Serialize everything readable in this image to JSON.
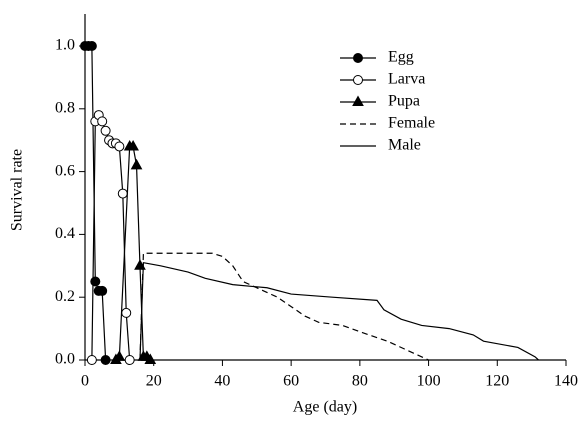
{
  "chart_data": {
    "type": "line",
    "xlabel": "Age (day)",
    "ylabel": "Survival rate",
    "xlim": [
      0,
      140
    ],
    "xticks": [
      0,
      20,
      40,
      60,
      80,
      100,
      120,
      140
    ],
    "ylim": [
      0,
      1.1
    ],
    "yticks": [
      {
        "value": 0,
        "label": "0.0"
      },
      0.2,
      0.4,
      0.6,
      0.8,
      {
        "value": 1,
        "label": "1.0"
      }
    ],
    "grid": false,
    "legend": "upper right",
    "series": [
      {
        "name": "Egg",
        "color": "#000000",
        "marker": "filled-circle",
        "dash": false,
        "x": [
          0,
          1,
          2,
          3,
          4,
          5,
          6
        ],
        "values": [
          1,
          1,
          1,
          0.25,
          0.22,
          0.22,
          0
        ]
      },
      {
        "name": "Larva",
        "color": "#000000",
        "marker": "open-circle",
        "dash": false,
        "x": [
          2,
          3,
          4,
          5,
          6,
          7,
          8,
          9,
          10,
          11,
          12,
          13
        ],
        "values": [
          0,
          0.76,
          0.78,
          0.76,
          0.73,
          0.7,
          0.69,
          0.69,
          0.68,
          0.53,
          0.15,
          0
        ]
      },
      {
        "name": "Pupa",
        "color": "#000000",
        "marker": "filled-triangle",
        "dash": false,
        "x": [
          9,
          10,
          13,
          14,
          15,
          16,
          17,
          18,
          19
        ],
        "values": [
          0,
          0.01,
          0.68,
          0.68,
          0.62,
          0.3,
          0.01,
          0.01,
          0
        ]
      },
      {
        "name": "Female",
        "color": "#000000",
        "marker": "none",
        "dash": true,
        "x": [
          16,
          17,
          37,
          40,
          43,
          46,
          52,
          56,
          60,
          64,
          68,
          75,
          80,
          88,
          94,
          100
        ],
        "values": [
          0,
          0.34,
          0.34,
          0.33,
          0.3,
          0.25,
          0.22,
          0.2,
          0.17,
          0.14,
          0.12,
          0.11,
          0.09,
          0.06,
          0.03,
          0
        ]
      },
      {
        "name": "Male",
        "color": "#000000",
        "marker": "none",
        "dash": false,
        "x": [
          16,
          17,
          22,
          30,
          35,
          43,
          53,
          60,
          72,
          85,
          87,
          92,
          98,
          106,
          113,
          116,
          126,
          131,
          132
        ],
        "values": [
          0,
          0.31,
          0.3,
          0.28,
          0.26,
          0.24,
          0.23,
          0.21,
          0.2,
          0.19,
          0.16,
          0.13,
          0.11,
          0.1,
          0.08,
          0.06,
          0.04,
          0.01,
          0
        ]
      }
    ]
  }
}
